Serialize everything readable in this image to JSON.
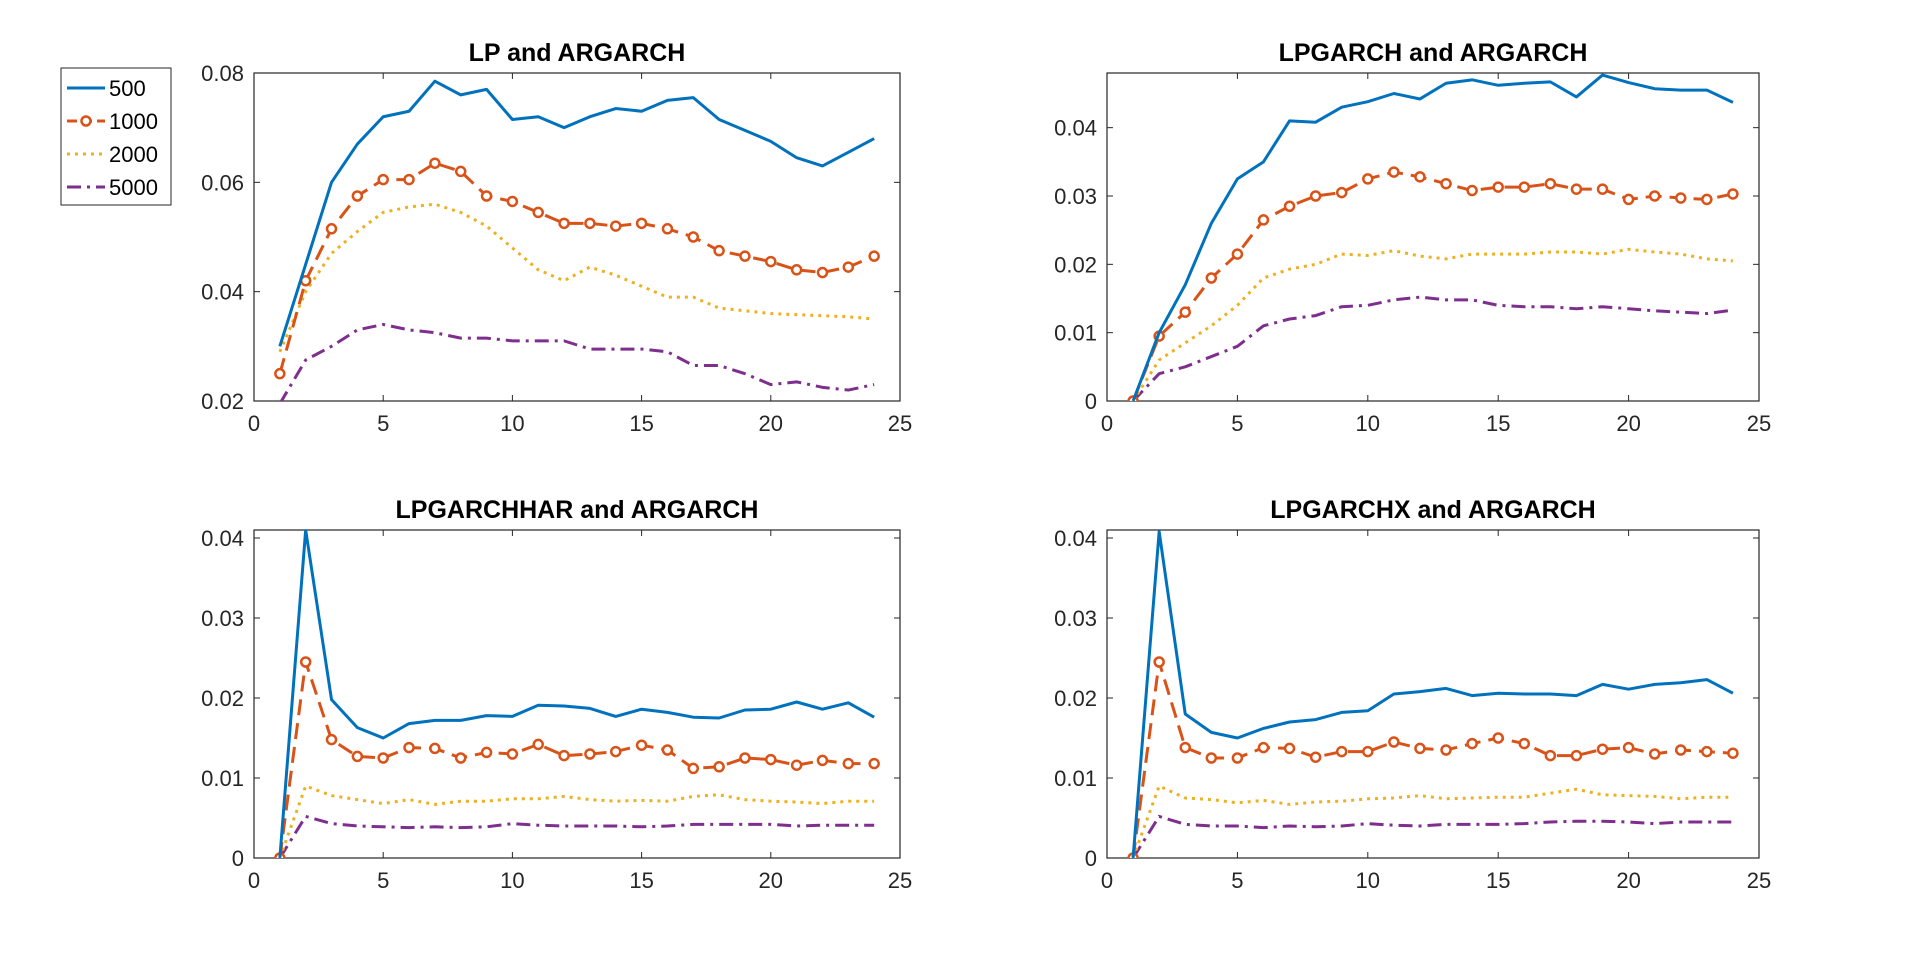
{
  "figure": {
    "legend": {
      "location": "top-left outside first panel",
      "entries": [
        "500",
        "1000",
        "2000",
        "5000"
      ]
    },
    "series_styles": [
      {
        "name": "500",
        "color": "#0072BD",
        "line": "solid",
        "marker": "none"
      },
      {
        "name": "1000",
        "color": "#D95319",
        "line": "dashed",
        "marker": "open-circle"
      },
      {
        "name": "2000",
        "color": "#EDB120",
        "line": "dotted",
        "marker": "none"
      },
      {
        "name": "5000",
        "color": "#7E2F8E",
        "line": "dash-dot",
        "marker": "none"
      }
    ]
  },
  "chart_data": [
    {
      "type": "line",
      "title": "LP and ARGARCH",
      "xlabel": "",
      "ylabel": "",
      "xlim": [
        0,
        25
      ],
      "ylim": [
        0.02,
        0.08
      ],
      "xticks": [
        0,
        5,
        10,
        15,
        20,
        25
      ],
      "yticks": [
        0.02,
        0.04,
        0.06,
        0.08
      ],
      "ytick_labels": [
        "0.02",
        "0.04",
        "0.06",
        "0.08"
      ],
      "x": [
        1,
        2,
        3,
        4,
        5,
        6,
        7,
        8,
        9,
        10,
        11,
        12,
        13,
        14,
        15,
        16,
        17,
        18,
        19,
        20,
        21,
        22,
        23,
        24
      ],
      "series": [
        {
          "name": "500",
          "values": [
            0.03,
            0.045,
            0.06,
            0.067,
            0.072,
            0.073,
            0.0785,
            0.076,
            0.077,
            0.0715,
            0.072,
            0.07,
            0.072,
            0.0735,
            0.073,
            0.075,
            0.0755,
            0.0715,
            0.0695,
            0.0675,
            0.0645,
            0.063,
            0.0655,
            0.068
          ]
        },
        {
          "name": "1000",
          "values": [
            0.025,
            0.042,
            0.0515,
            0.0575,
            0.0605,
            0.0605,
            0.0635,
            0.062,
            0.0575,
            0.0565,
            0.0545,
            0.0525,
            0.0525,
            0.052,
            0.0525,
            0.0515,
            0.05,
            0.0475,
            0.0465,
            0.0455,
            0.044,
            0.0435,
            0.0445,
            0.0465
          ]
        },
        {
          "name": "2000",
          "values": [
            0.029,
            0.04,
            0.047,
            0.051,
            0.0545,
            0.0555,
            0.056,
            0.0545,
            0.052,
            0.048,
            0.044,
            0.042,
            0.0445,
            0.043,
            0.041,
            0.039,
            0.039,
            0.037,
            0.0365,
            0.036,
            0.0358,
            0.0356,
            0.0354,
            0.035
          ]
        },
        {
          "name": "5000",
          "values": [
            0.0195,
            0.0275,
            0.03,
            0.033,
            0.034,
            0.033,
            0.0325,
            0.0315,
            0.0315,
            0.031,
            0.031,
            0.031,
            0.0295,
            0.0295,
            0.0295,
            0.029,
            0.0265,
            0.0265,
            0.025,
            0.023,
            0.0235,
            0.0225,
            0.022,
            0.023
          ]
        }
      ]
    },
    {
      "type": "line",
      "title": "LPGARCH and ARGARCH",
      "xlabel": "",
      "ylabel": "",
      "xlim": [
        0,
        25
      ],
      "ylim": [
        0,
        0.048
      ],
      "xticks": [
        0,
        5,
        10,
        15,
        20,
        25
      ],
      "yticks": [
        0,
        0.01,
        0.02,
        0.03,
        0.04
      ],
      "ytick_labels": [
        "0",
        "0.01",
        "0.02",
        "0.03",
        "0.04"
      ],
      "x": [
        1,
        2,
        3,
        4,
        5,
        6,
        7,
        8,
        9,
        10,
        11,
        12,
        13,
        14,
        15,
        16,
        17,
        18,
        19,
        20,
        21,
        22,
        23,
        24
      ],
      "series": [
        {
          "name": "500",
          "values": [
            0,
            0.01,
            0.017,
            0.026,
            0.0325,
            0.035,
            0.041,
            0.0408,
            0.043,
            0.0438,
            0.045,
            0.0442,
            0.0465,
            0.047,
            0.0462,
            0.0465,
            0.0467,
            0.0445,
            0.0477,
            0.0466,
            0.0457,
            0.0455,
            0.0455,
            0.0437
          ]
        },
        {
          "name": "1000",
          "values": [
            0,
            0.0095,
            0.013,
            0.018,
            0.0215,
            0.0265,
            0.0285,
            0.03,
            0.0305,
            0.0325,
            0.0335,
            0.0328,
            0.0318,
            0.0308,
            0.0313,
            0.0313,
            0.0318,
            0.031,
            0.031,
            0.0295,
            0.03,
            0.0297,
            0.0295,
            0.0303
          ]
        },
        {
          "name": "2000",
          "values": [
            0,
            0.006,
            0.0085,
            0.011,
            0.014,
            0.018,
            0.0193,
            0.02,
            0.0215,
            0.0213,
            0.022,
            0.0212,
            0.0208,
            0.0215,
            0.0215,
            0.0215,
            0.0218,
            0.0218,
            0.0215,
            0.0222,
            0.0218,
            0.0215,
            0.0208,
            0.0205
          ]
        },
        {
          "name": "5000",
          "values": [
            0,
            0.004,
            0.005,
            0.0065,
            0.008,
            0.011,
            0.012,
            0.0125,
            0.0138,
            0.014,
            0.0148,
            0.0152,
            0.0148,
            0.0148,
            0.014,
            0.0138,
            0.0138,
            0.0135,
            0.0138,
            0.0135,
            0.0132,
            0.013,
            0.0128,
            0.0133
          ]
        }
      ]
    },
    {
      "type": "line",
      "title": "LPGARCHHAR and ARGARCH",
      "xlabel": "",
      "ylabel": "",
      "xlim": [
        0,
        25
      ],
      "ylim": [
        0,
        0.041
      ],
      "xticks": [
        0,
        5,
        10,
        15,
        20,
        25
      ],
      "yticks": [
        0,
        0.01,
        0.02,
        0.03,
        0.04
      ],
      "ytick_labels": [
        "0",
        "0.01",
        "0.02",
        "0.03",
        "0.04"
      ],
      "x": [
        1,
        2,
        3,
        4,
        5,
        6,
        7,
        8,
        9,
        10,
        11,
        12,
        13,
        14,
        15,
        16,
        17,
        18,
        19,
        20,
        21,
        22,
        23,
        24
      ],
      "series": [
        {
          "name": "500",
          "values": [
            0,
            0.041,
            0.0198,
            0.0163,
            0.015,
            0.0168,
            0.0172,
            0.0172,
            0.0178,
            0.0177,
            0.0191,
            0.019,
            0.0187,
            0.0177,
            0.0186,
            0.0182,
            0.0176,
            0.0175,
            0.0185,
            0.0186,
            0.0195,
            0.0186,
            0.0194,
            0.0176
          ]
        },
        {
          "name": "1000",
          "values": [
            0,
            0.0245,
            0.0148,
            0.0127,
            0.0125,
            0.0138,
            0.0137,
            0.0125,
            0.0132,
            0.013,
            0.0142,
            0.0128,
            0.013,
            0.0133,
            0.0141,
            0.0135,
            0.0112,
            0.0114,
            0.0125,
            0.0123,
            0.0116,
            0.0122,
            0.0118,
            0.0118
          ]
        },
        {
          "name": "2000",
          "values": [
            0,
            0.009,
            0.0078,
            0.0073,
            0.0068,
            0.0073,
            0.0067,
            0.0071,
            0.0071,
            0.0074,
            0.0074,
            0.0077,
            0.0073,
            0.0071,
            0.0072,
            0.0071,
            0.0077,
            0.0079,
            0.0073,
            0.0071,
            0.007,
            0.0068,
            0.0071,
            0.0071
          ]
        },
        {
          "name": "5000",
          "values": [
            0,
            0.0052,
            0.0043,
            0.004,
            0.0039,
            0.0038,
            0.0039,
            0.0038,
            0.0039,
            0.0043,
            0.0041,
            0.004,
            0.004,
            0.004,
            0.0039,
            0.004,
            0.0042,
            0.0042,
            0.0042,
            0.0042,
            0.004,
            0.0041,
            0.0041,
            0.0041
          ]
        }
      ]
    },
    {
      "type": "line",
      "title": "LPGARCHX and ARGARCH",
      "xlabel": "",
      "ylabel": "",
      "xlim": [
        0,
        25
      ],
      "ylim": [
        0,
        0.041
      ],
      "xticks": [
        0,
        5,
        10,
        15,
        20,
        25
      ],
      "yticks": [
        0,
        0.01,
        0.02,
        0.03,
        0.04
      ],
      "ytick_labels": [
        "0",
        "0.01",
        "0.02",
        "0.03",
        "0.04"
      ],
      "x": [
        1,
        2,
        3,
        4,
        5,
        6,
        7,
        8,
        9,
        10,
        11,
        12,
        13,
        14,
        15,
        16,
        17,
        18,
        19,
        20,
        21,
        22,
        23,
        24
      ],
      "series": [
        {
          "name": "500",
          "values": [
            0,
            0.0408,
            0.018,
            0.0157,
            0.015,
            0.0162,
            0.017,
            0.0173,
            0.0182,
            0.0184,
            0.0205,
            0.0208,
            0.0212,
            0.0203,
            0.0206,
            0.0205,
            0.0205,
            0.0203,
            0.0217,
            0.0211,
            0.0217,
            0.0219,
            0.0223,
            0.0206
          ]
        },
        {
          "name": "1000",
          "values": [
            0,
            0.0245,
            0.0138,
            0.0125,
            0.0125,
            0.0138,
            0.0137,
            0.0126,
            0.0133,
            0.0133,
            0.0145,
            0.0137,
            0.0135,
            0.0143,
            0.015,
            0.0143,
            0.0128,
            0.0128,
            0.0136,
            0.0138,
            0.013,
            0.0135,
            0.0133,
            0.0131
          ]
        },
        {
          "name": "2000",
          "values": [
            0,
            0.009,
            0.0075,
            0.0073,
            0.0069,
            0.0072,
            0.0067,
            0.007,
            0.0071,
            0.0074,
            0.0075,
            0.0078,
            0.0074,
            0.0075,
            0.0076,
            0.0076,
            0.0081,
            0.0086,
            0.0079,
            0.0078,
            0.0077,
            0.0074,
            0.0076,
            0.0076
          ]
        },
        {
          "name": "5000",
          "values": [
            0,
            0.0052,
            0.0042,
            0.004,
            0.004,
            0.0038,
            0.004,
            0.0039,
            0.004,
            0.0043,
            0.0041,
            0.004,
            0.0042,
            0.0042,
            0.0042,
            0.0043,
            0.0045,
            0.0046,
            0.0046,
            0.0045,
            0.0043,
            0.0045,
            0.0045,
            0.0045
          ]
        }
      ]
    }
  ]
}
